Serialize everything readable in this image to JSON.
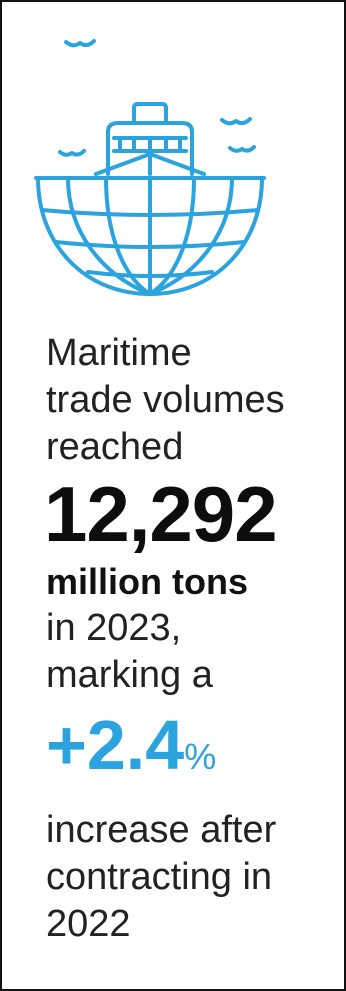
{
  "colors": {
    "accent": "#2aa3df",
    "text": "#222222",
    "border": "#111111"
  },
  "illustration": {
    "icon": "ship-with-globe-hull-icon",
    "birds": [
      "bird-icon",
      "bird-icon",
      "bird-icon",
      "bird-icon"
    ]
  },
  "stat": {
    "lead_lines": [
      "Maritime",
      "trade volumes",
      "reached"
    ],
    "value": "12,292",
    "unit": "million tons",
    "mid_lines": [
      "in 2023,",
      "marking a"
    ],
    "change_value": "+2.4",
    "change_unit": "%",
    "tail_lines": [
      "increase after",
      "contracting in",
      "2022"
    ]
  }
}
